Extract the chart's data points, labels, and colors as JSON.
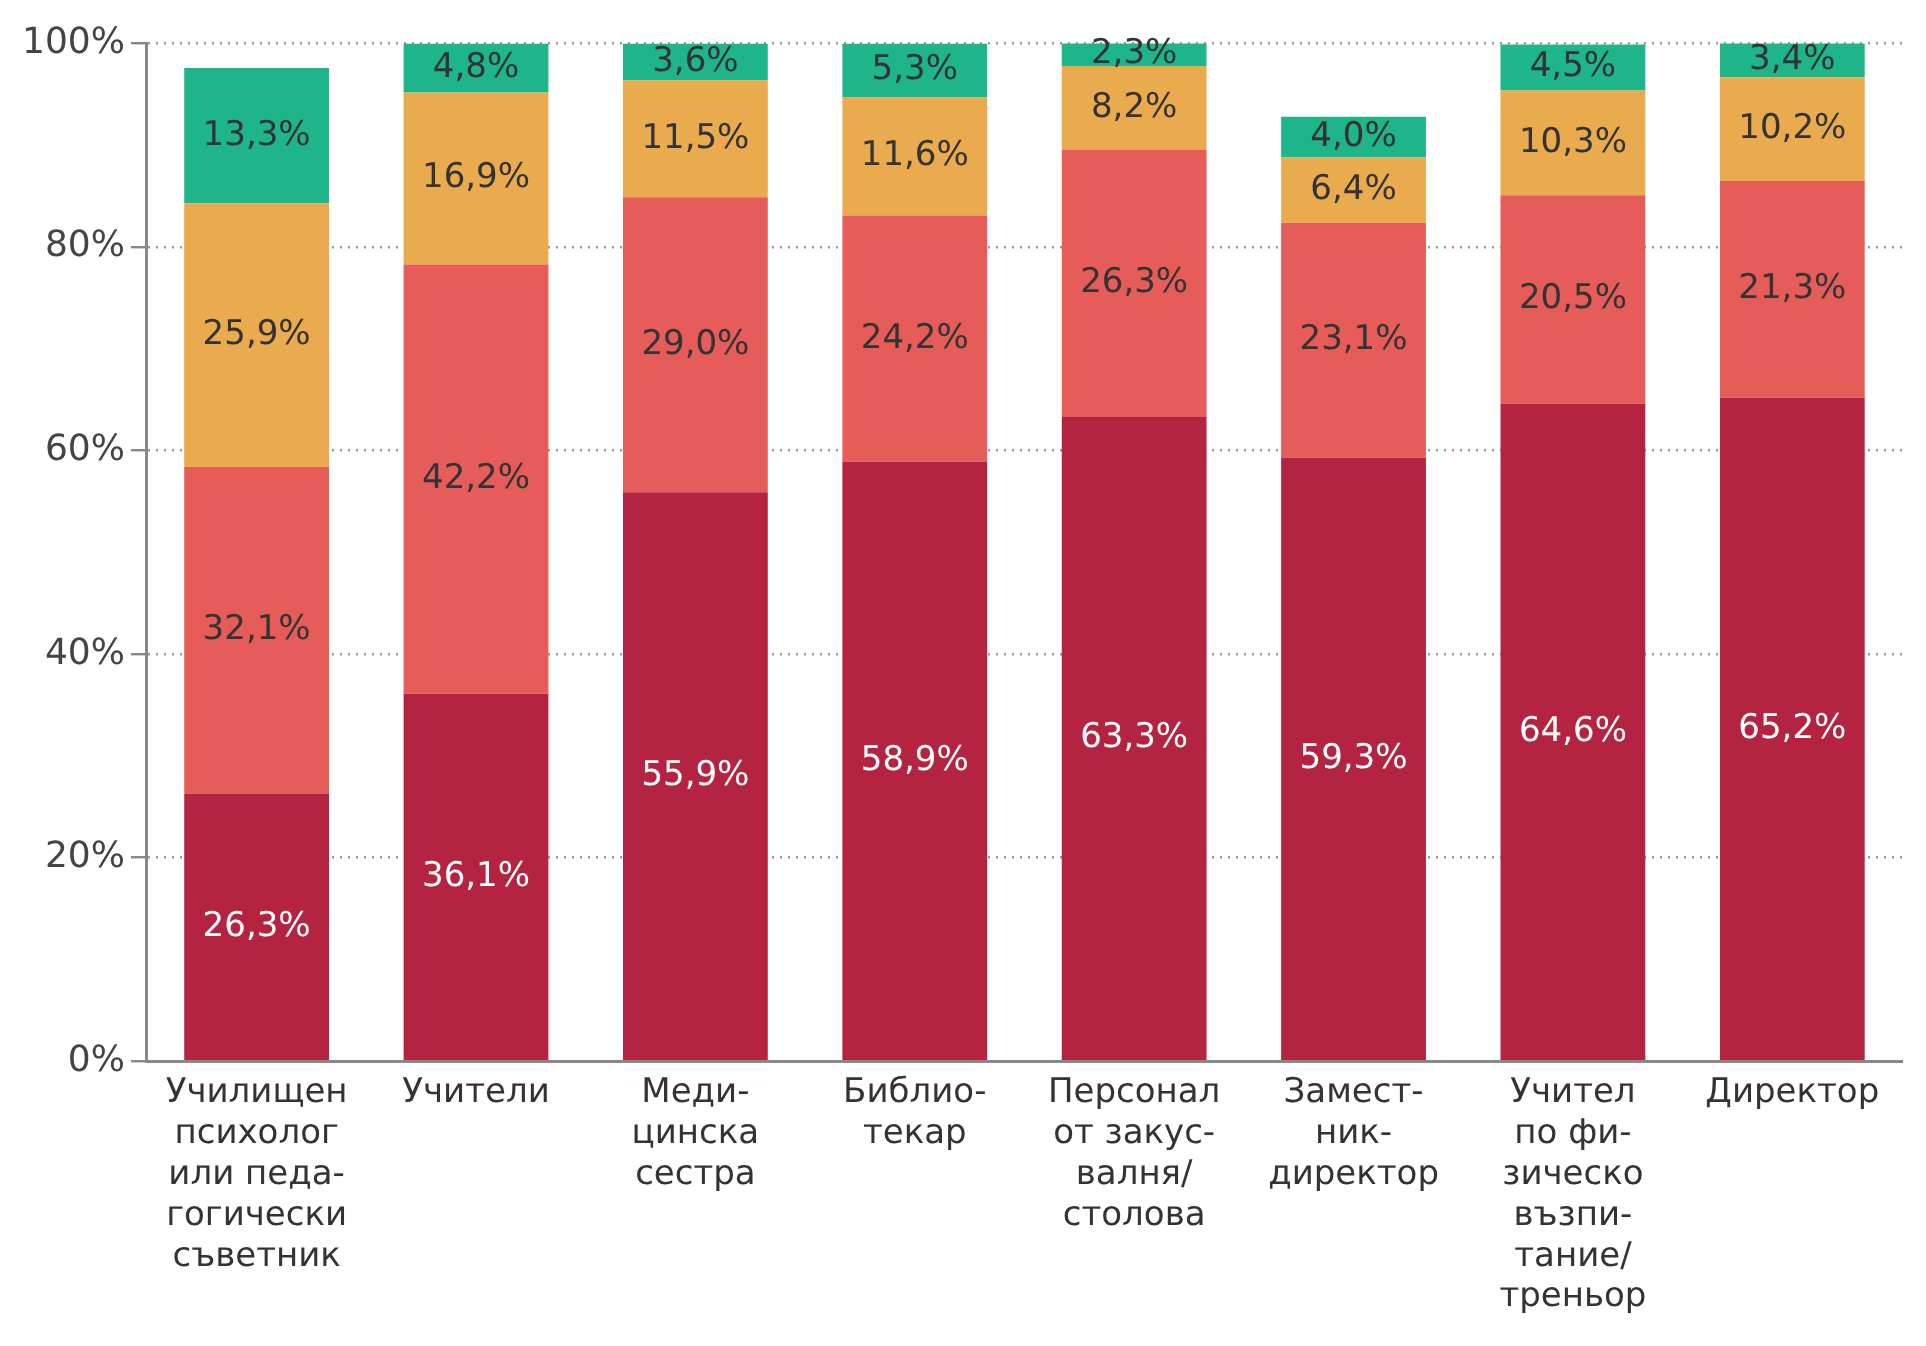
{
  "chart_data": {
    "type": "bar",
    "stacked": true,
    "categories": [
      "Училищен\nпсихолог\nили педа-\nгогически\nсъветник",
      "Учители",
      "Меди-\nцинска\nсестра",
      "Библио-\nтекар",
      "Персонал\nот закус-\nвалня/\nстолова",
      "Замест-\nник-\nдиректор",
      "Учител\nпо фи-\nзическо\nвъзпи-\nтание/\nтреньор",
      "Директор"
    ],
    "series": [
      {
        "color": "#b42340",
        "values": [
          26.3,
          36.1,
          55.9,
          58.9,
          63.3,
          59.3,
          64.6,
          65.2
        ],
        "value_labels": [
          "26,3%",
          "36,1%",
          "55,9%",
          "58,9%",
          "63,3%",
          "59,3%",
          "64,6%",
          "65,2%"
        ]
      },
      {
        "color": "#e65c58",
        "values": [
          32.1,
          42.2,
          29.0,
          24.2,
          26.3,
          23.1,
          20.5,
          21.3
        ],
        "value_labels": [
          "32,1%",
          "42,2%",
          "29,0%",
          "24,2%",
          "26,3%",
          "23,1%",
          "20,5%",
          "21,3%"
        ]
      },
      {
        "color": "#e9ab4d",
        "values": [
          25.9,
          16.9,
          11.5,
          11.6,
          8.2,
          6.4,
          10.3,
          10.2
        ],
        "value_labels": [
          "25,9%",
          "16,9%",
          "11,5%",
          "11,6%",
          "8,2%",
          "6,4%",
          "10,3%",
          "10,2%"
        ]
      },
      {
        "color": "#1fb58b",
        "values": [
          13.3,
          4.8,
          3.6,
          5.3,
          2.3,
          4.0,
          4.5,
          3.4
        ],
        "value_labels": [
          "13,3%",
          "4,8%",
          "3,6%",
          "5,3%",
          "2,3%",
          "4,0%",
          "4,5%",
          "3,4%"
        ]
      }
    ],
    "ylim": [
      0,
      100
    ],
    "yticks": [
      {
        "value": 0,
        "label": "0%"
      },
      {
        "value": 20,
        "label": "20%"
      },
      {
        "value": 40,
        "label": "40%"
      },
      {
        "value": 60,
        "label": "60%"
      },
      {
        "value": 80,
        "label": "80%"
      },
      {
        "value": 100,
        "label": "100%"
      }
    ],
    "grid": "y",
    "line_style": "dotted",
    "legend": false
  }
}
